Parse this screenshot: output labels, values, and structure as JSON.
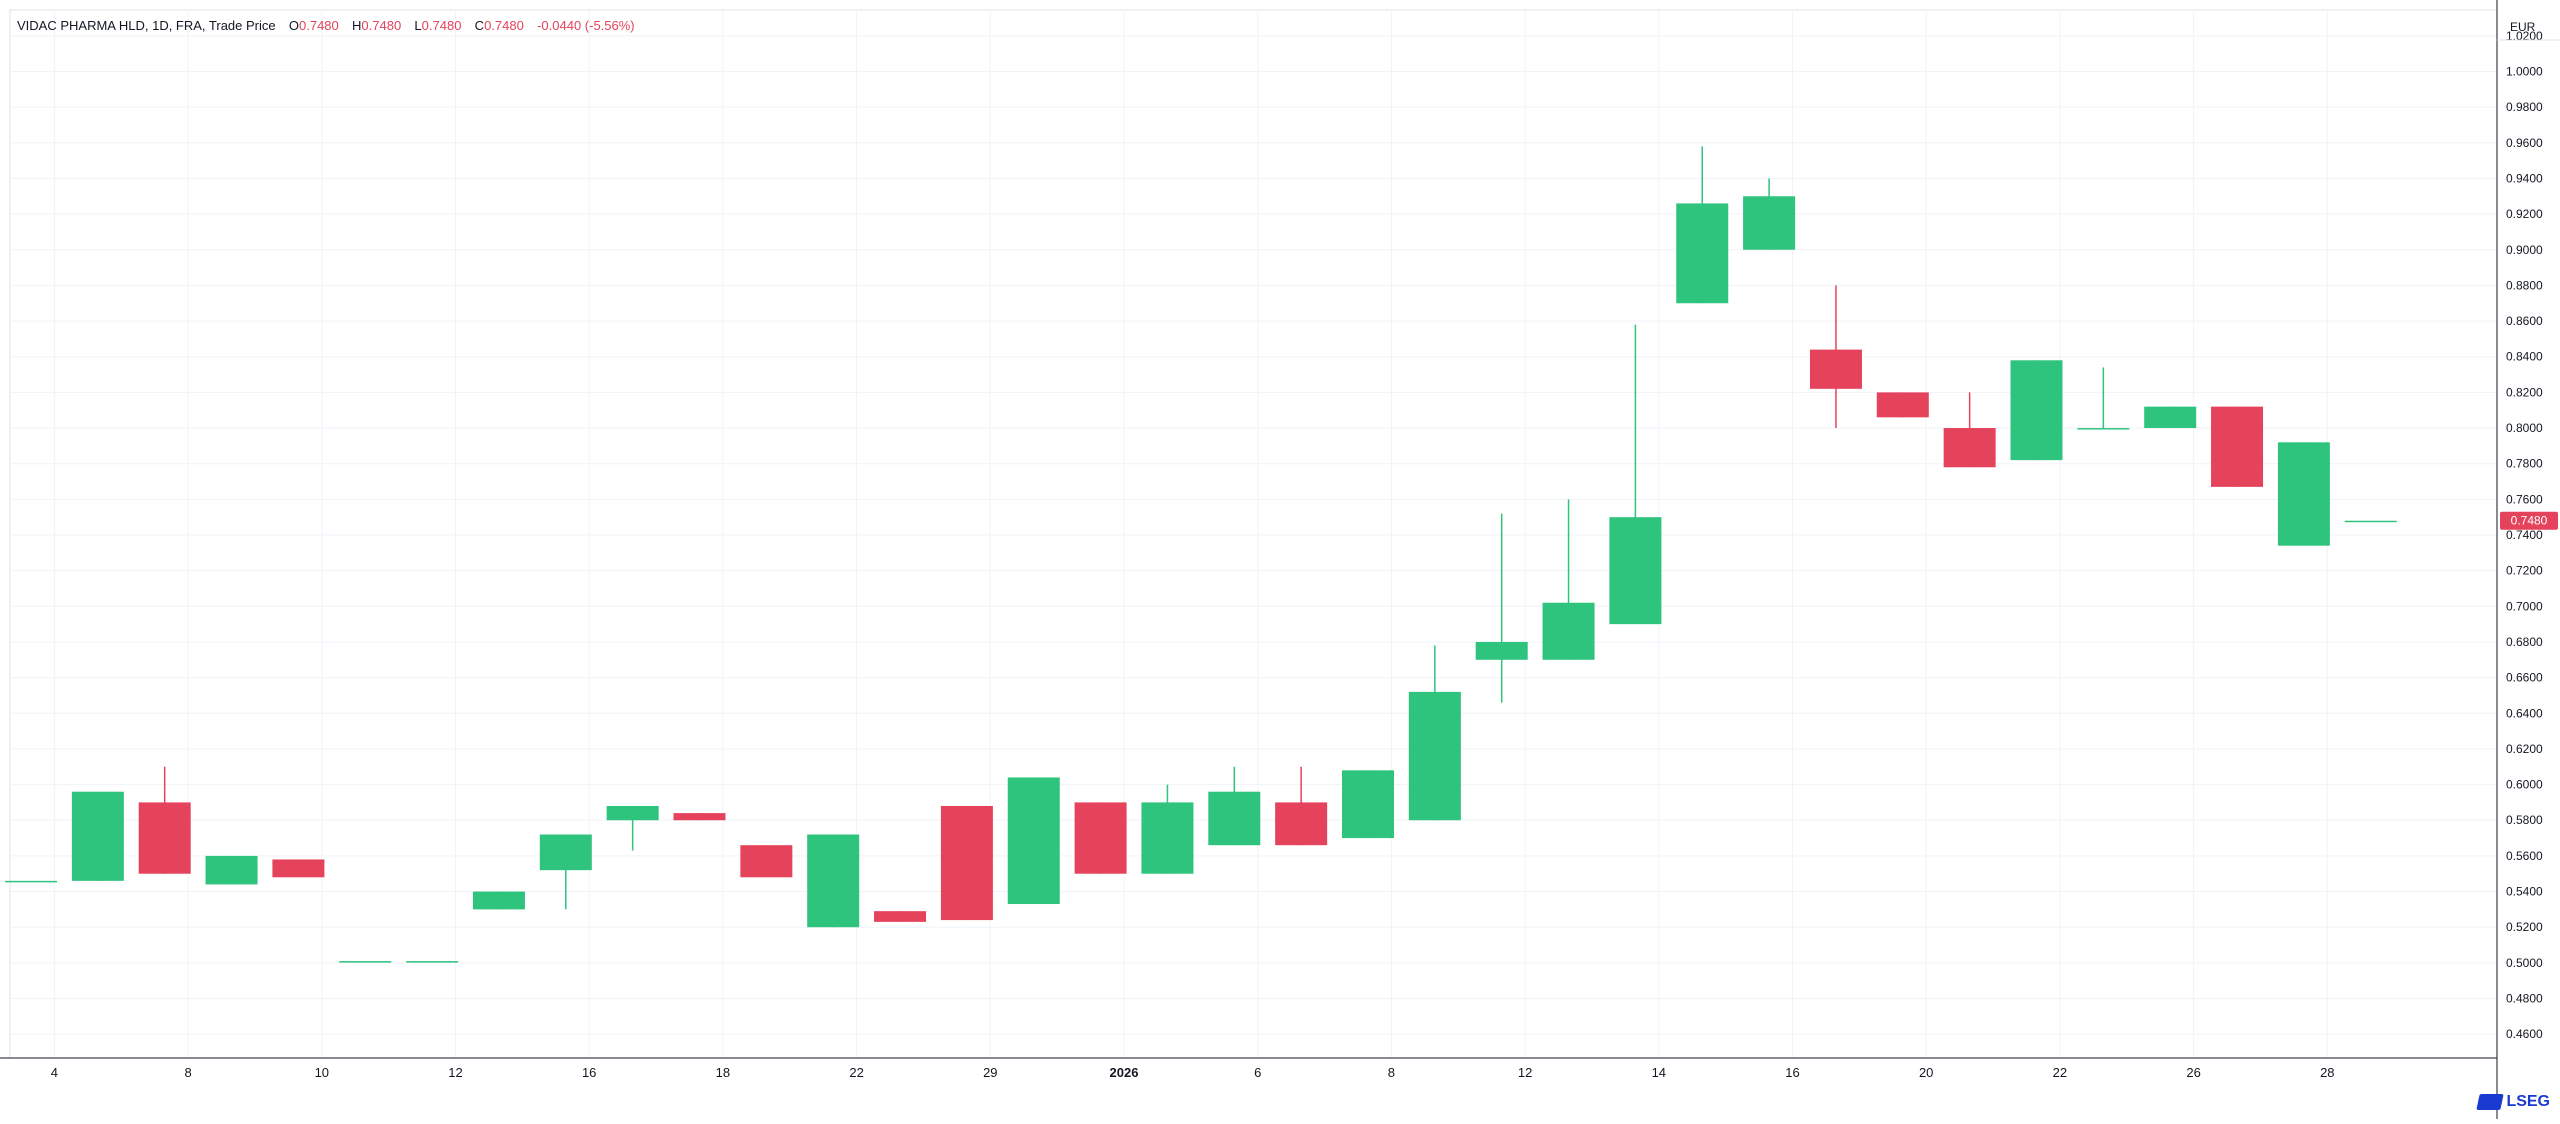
{
  "legend": {
    "symbol": "VIDAC PHARMA HLD, 1D, FRA, Trade Price",
    "open_label": "O",
    "open": "0.7480",
    "high_label": "H",
    "high": "0.7480",
    "low_label": "L",
    "low": "0.7480",
    "close_label": "C",
    "close": "0.7480",
    "change": "-0.0440 (-5.56%)"
  },
  "currency": "EUR",
  "last_price_label": "0.7480",
  "brand": "LSEG",
  "colors": {
    "up": "#2ec47d",
    "down": "#e5425c",
    "grid": "#f0f3fa",
    "axis": "#131722"
  },
  "chart_data": {
    "type": "candlestick",
    "ylim": [
      0.45,
      1.03
    ],
    "y_ticks": [
      "0.4600",
      "0.4800",
      "0.5000",
      "0.5200",
      "0.5400",
      "0.5600",
      "0.5800",
      "0.6000",
      "0.6200",
      "0.6400",
      "0.6600",
      "0.6800",
      "0.7000",
      "0.7200",
      "0.7400",
      "0.7600",
      "0.7800",
      "0.8000",
      "0.8200",
      "0.8400",
      "0.8600",
      "0.8800",
      "0.9000",
      "0.9200",
      "0.9400",
      "0.9600",
      "0.9800",
      "1.0000",
      "1.0200"
    ],
    "x_ticks": [
      {
        "index": 0.35,
        "label": "4",
        "bold": false
      },
      {
        "index": 2.35,
        "label": "8",
        "bold": false
      },
      {
        "index": 4.35,
        "label": "10",
        "bold": false
      },
      {
        "index": 6.35,
        "label": "12",
        "bold": false
      },
      {
        "index": 8.35,
        "label": "16",
        "bold": false
      },
      {
        "index": 10.35,
        "label": "18",
        "bold": false
      },
      {
        "index": 12.35,
        "label": "22",
        "bold": false
      },
      {
        "index": 14.35,
        "label": "29",
        "bold": false
      },
      {
        "index": 16.35,
        "label": "2026",
        "bold": true
      },
      {
        "index": 18.35,
        "label": "6",
        "bold": false
      },
      {
        "index": 20.35,
        "label": "8",
        "bold": false
      },
      {
        "index": 22.35,
        "label": "12",
        "bold": false
      },
      {
        "index": 24.35,
        "label": "14",
        "bold": false
      },
      {
        "index": 26.35,
        "label": "16",
        "bold": false
      },
      {
        "index": 28.35,
        "label": "20",
        "bold": false
      },
      {
        "index": 30.35,
        "label": "22",
        "bold": false
      },
      {
        "index": 32.35,
        "label": "26",
        "bold": false
      },
      {
        "index": 34.35,
        "label": "28",
        "bold": false
      }
    ],
    "candles": [
      {
        "o": 0.546,
        "h": 0.546,
        "l": 0.546,
        "c": 0.546
      },
      {
        "o": 0.546,
        "h": 0.596,
        "l": 0.546,
        "c": 0.596
      },
      {
        "o": 0.59,
        "h": 0.61,
        "l": 0.55,
        "c": 0.55
      },
      {
        "o": 0.544,
        "h": 0.56,
        "l": 0.544,
        "c": 0.56
      },
      {
        "o": 0.558,
        "h": 0.558,
        "l": 0.548,
        "c": 0.548
      },
      {
        "o": 0.501,
        "h": 0.501,
        "l": 0.501,
        "c": 0.501
      },
      {
        "o": 0.501,
        "h": 0.501,
        "l": 0.501,
        "c": 0.501
      },
      {
        "o": 0.53,
        "h": 0.54,
        "l": 0.53,
        "c": 0.54
      },
      {
        "o": 0.552,
        "h": 0.572,
        "l": 0.53,
        "c": 0.572
      },
      {
        "o": 0.58,
        "h": 0.588,
        "l": 0.563,
        "c": 0.588
      },
      {
        "o": 0.584,
        "h": 0.584,
        "l": 0.58,
        "c": 0.58
      },
      {
        "o": 0.566,
        "h": 0.566,
        "l": 0.548,
        "c": 0.548
      },
      {
        "o": 0.52,
        "h": 0.572,
        "l": 0.52,
        "c": 0.572
      },
      {
        "o": 0.529,
        "h": 0.529,
        "l": 0.523,
        "c": 0.523
      },
      {
        "o": 0.588,
        "h": 0.588,
        "l": 0.524,
        "c": 0.524
      },
      {
        "o": 0.533,
        "h": 0.604,
        "l": 0.533,
        "c": 0.604
      },
      {
        "o": 0.59,
        "h": 0.59,
        "l": 0.55,
        "c": 0.55
      },
      {
        "o": 0.55,
        "h": 0.6,
        "l": 0.55,
        "c": 0.59
      },
      {
        "o": 0.566,
        "h": 0.61,
        "l": 0.566,
        "c": 0.596
      },
      {
        "o": 0.59,
        "h": 0.61,
        "l": 0.566,
        "c": 0.566
      },
      {
        "o": 0.57,
        "h": 0.608,
        "l": 0.57,
        "c": 0.608
      },
      {
        "o": 0.58,
        "h": 0.678,
        "l": 0.58,
        "c": 0.652
      },
      {
        "o": 0.67,
        "h": 0.752,
        "l": 0.646,
        "c": 0.68
      },
      {
        "o": 0.67,
        "h": 0.76,
        "l": 0.67,
        "c": 0.702
      },
      {
        "o": 0.69,
        "h": 0.858,
        "l": 0.69,
        "c": 0.75
      },
      {
        "o": 0.87,
        "h": 0.958,
        "l": 0.87,
        "c": 0.926
      },
      {
        "o": 0.9,
        "h": 0.94,
        "l": 0.9,
        "c": 0.93
      },
      {
        "o": 0.844,
        "h": 0.88,
        "l": 0.8,
        "c": 0.822
      },
      {
        "o": 0.82,
        "h": 0.82,
        "l": 0.806,
        "c": 0.806
      },
      {
        "o": 0.8,
        "h": 0.82,
        "l": 0.778,
        "c": 0.778
      },
      {
        "o": 0.782,
        "h": 0.838,
        "l": 0.782,
        "c": 0.838
      },
      {
        "o": 0.8,
        "h": 0.834,
        "l": 0.8,
        "c": 0.8
      },
      {
        "o": 0.8,
        "h": 0.812,
        "l": 0.8,
        "c": 0.812
      },
      {
        "o": 0.812,
        "h": 0.812,
        "l": 0.767,
        "c": 0.767
      },
      {
        "o": 0.734,
        "h": 0.792,
        "l": 0.734,
        "c": 0.792
      },
      {
        "o": 0.748,
        "h": 0.748,
        "l": 0.748,
        "c": 0.748
      }
    ]
  }
}
